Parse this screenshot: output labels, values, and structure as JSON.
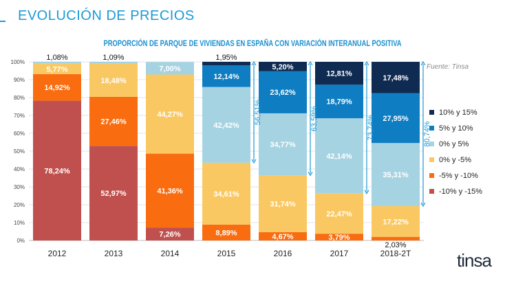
{
  "page_title": "EVOLUCIÓN DE PRECIOS",
  "source": "Fuente: Tinsa",
  "logo": "tinsa",
  "chart_data": {
    "type": "bar",
    "stacked": true,
    "title": "PROPORCIÓN DE PARQUE DE VIVIENDAS EN ESPAÑA CON VARIACIÓN INTERANUAL POSITIVA",
    "categories": [
      "2012",
      "2013",
      "2014",
      "2015",
      "2016",
      "2017",
      "2018-2T"
    ],
    "ylim": [
      0,
      100
    ],
    "yticks": [
      "0%",
      "10%",
      "20%",
      "30%",
      "40%",
      "50%",
      "60%",
      "70%",
      "80%",
      "90%",
      "100%"
    ],
    "series": [
      {
        "name": "-10% y -15%",
        "color": "#c0504d",
        "values": [
          78.24,
          52.97,
          7.26,
          0,
          0,
          0,
          0
        ],
        "labels": [
          "78,24%",
          "52,97%",
          "7,26%",
          "",
          "",
          "",
          ""
        ]
      },
      {
        "name": "-5% y -10%",
        "color": "#f96c0f",
        "values": [
          14.92,
          27.46,
          41.36,
          8.89,
          4.67,
          3.79,
          2.03
        ],
        "labels": [
          "14,92%",
          "27,46%",
          "41,36%",
          "8,89%",
          "4,67%",
          "3,79%",
          "2,03%"
        ]
      },
      {
        "name": "0% y -5%",
        "color": "#fac862",
        "values": [
          5.77,
          18.48,
          44.27,
          34.61,
          31.74,
          22.47,
          17.22
        ],
        "labels": [
          "5,77%",
          "18,48%",
          "44,27%",
          "34,61%",
          "31,74%",
          "22,47%",
          "17,22%"
        ]
      },
      {
        "name": "0% y 5%",
        "color": "#a6d3e1",
        "values": [
          1.08,
          1.09,
          7.0,
          42.42,
          34.77,
          42.14,
          35.31
        ],
        "labels": [
          "1,08%",
          "1,09%",
          "7,00%",
          "42,42%",
          "34,77%",
          "42,14%",
          "35,31%"
        ]
      },
      {
        "name": "5% y 10%",
        "color": "#0f7dc2",
        "values": [
          0,
          0,
          0,
          12.14,
          23.62,
          18.79,
          27.95
        ],
        "labels": [
          "",
          "",
          "",
          "12,14%",
          "23,62%",
          "18,79%",
          "27,95%"
        ]
      },
      {
        "name": "10% y 15%",
        "color": "#0f2b52",
        "values": [
          0,
          0,
          0,
          1.95,
          5.2,
          12.81,
          17.48
        ],
        "labels": [
          "",
          "",
          "",
          "1,95%",
          "5,20%",
          "12,81%",
          "17,48%"
        ]
      }
    ],
    "positive_share": [
      {
        "category": "2015",
        "value": 56.51,
        "label": "56,51%"
      },
      {
        "category": "2016",
        "value": 63.59,
        "label": "63,59%"
      },
      {
        "category": "2017",
        "value": 73.74,
        "label": "73,74%"
      },
      {
        "category": "2018-2T",
        "value": 80.74,
        "label": "80,74%"
      }
    ],
    "legend_position": "right",
    "legend_order": [
      "10% y 15%",
      "5% y 10%",
      "0% y 5%",
      "0% y -5%",
      "-5% y -10%",
      "-10% y -15%"
    ]
  }
}
